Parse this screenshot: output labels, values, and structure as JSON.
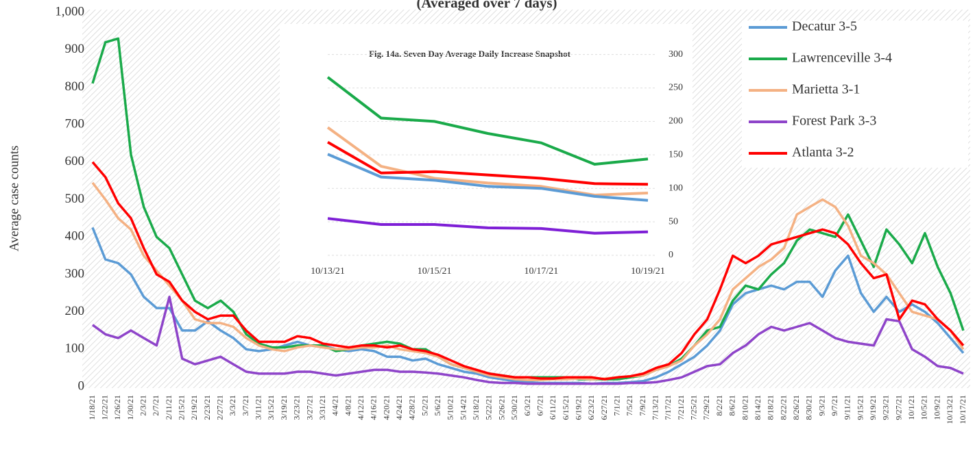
{
  "chart_data": [
    {
      "type": "line",
      "title": "(Averaged over 7 days)",
      "y_label": "Average case counts",
      "categories": [
        "1/18/21",
        "1/22/21",
        "1/26/21",
        "1/30/21",
        "2/3/21",
        "2/7/21",
        "2/11/21",
        "2/15/21",
        "2/19/21",
        "2/23/21",
        "2/27/21",
        "3/3/21",
        "3/7/21",
        "3/11/21",
        "3/15/21",
        "3/19/21",
        "3/23/21",
        "3/27/21",
        "3/31/21",
        "4/4/21",
        "4/8/21",
        "4/12/21",
        "4/16/21",
        "4/20/21",
        "4/24/21",
        "4/28/21",
        "5/2/21",
        "5/6/21",
        "5/10/21",
        "5/14/21",
        "5/18/21",
        "5/22/21",
        "5/26/21",
        "5/30/21",
        "6/3/21",
        "6/7/21",
        "6/11/21",
        "6/15/21",
        "6/19/21",
        "6/23/21",
        "6/27/21",
        "7/1/21",
        "7/5/21",
        "7/9/21",
        "7/13/21",
        "7/17/21",
        "7/21/21",
        "7/25/21",
        "7/29/21",
        "8/2/21",
        "8/6/21",
        "8/10/21",
        "8/14/21",
        "8/18/21",
        "8/22/21",
        "8/26/21",
        "8/30/21",
        "9/3/21",
        "9/7/21",
        "9/11/21",
        "9/15/21",
        "9/19/21",
        "9/23/21",
        "9/27/21",
        "10/1/21",
        "10/5/21",
        "10/9/21",
        "10/13/21",
        "10/17/21"
      ],
      "series": [
        {
          "name": "Decatur 3-5",
          "color": "#5b9bd5",
          "values": [
            425,
            340,
            330,
            300,
            240,
            210,
            210,
            150,
            150,
            175,
            150,
            130,
            100,
            95,
            100,
            110,
            120,
            110,
            110,
            100,
            95,
            100,
            95,
            80,
            80,
            70,
            75,
            60,
            50,
            40,
            35,
            25,
            20,
            15,
            12,
            10,
            10,
            10,
            10,
            8,
            10,
            10,
            12,
            15,
            25,
            40,
            60,
            80,
            110,
            150,
            220,
            250,
            260,
            270,
            260,
            280,
            280,
            240,
            310,
            350,
            250,
            200,
            240,
            200,
            220,
            200,
            170,
            130,
            90
          ]
        },
        {
          "name": "Lawrenceville 3-4",
          "color": "#1aaa4a",
          "values": [
            810,
            920,
            930,
            620,
            480,
            400,
            370,
            300,
            230,
            210,
            230,
            200,
            140,
            115,
            105,
            105,
            110,
            110,
            110,
            95,
            100,
            110,
            115,
            120,
            115,
            100,
            100,
            80,
            60,
            50,
            40,
            35,
            30,
            25,
            25,
            25,
            25,
            25,
            20,
            20,
            20,
            20,
            25,
            30,
            45,
            55,
            75,
            110,
            150,
            160,
            230,
            270,
            260,
            300,
            330,
            390,
            420,
            410,
            400,
            460,
            390,
            320,
            420,
            380,
            330,
            410,
            320,
            250,
            150
          ]
        },
        {
          "name": "Marietta 3-1",
          "color": "#f4b183",
          "values": [
            545,
            500,
            450,
            420,
            350,
            310,
            270,
            230,
            180,
            170,
            170,
            160,
            130,
            110,
            100,
            95,
            105,
            110,
            105,
            100,
            100,
            105,
            105,
            110,
            100,
            95,
            90,
            80,
            60,
            50,
            40,
            30,
            25,
            20,
            18,
            18,
            20,
            20,
            22,
            20,
            22,
            25,
            28,
            30,
            45,
            55,
            70,
            110,
            140,
            180,
            260,
            290,
            320,
            340,
            370,
            460,
            480,
            500,
            480,
            430,
            350,
            330,
            300,
            250,
            200,
            190,
            180,
            150,
            100
          ]
        },
        {
          "name": "Forest Park 3-3",
          "color": "#8e44c9",
          "values": [
            165,
            140,
            130,
            150,
            130,
            110,
            240,
            75,
            60,
            70,
            80,
            60,
            40,
            35,
            35,
            35,
            40,
            40,
            35,
            30,
            35,
            40,
            45,
            45,
            40,
            40,
            38,
            35,
            30,
            25,
            18,
            12,
            10,
            10,
            8,
            8,
            8,
            8,
            8,
            8,
            8,
            8,
            10,
            10,
            12,
            18,
            25,
            40,
            55,
            60,
            90,
            110,
            140,
            160,
            150,
            160,
            170,
            150,
            130,
            120,
            115,
            110,
            180,
            175,
            100,
            80,
            55,
            50,
            35
          ]
        },
        {
          "name": "Atlanta 3-2",
          "color": "#ff0000",
          "values": [
            600,
            560,
            490,
            450,
            370,
            300,
            280,
            230,
            200,
            180,
            190,
            190,
            150,
            120,
            120,
            120,
            135,
            130,
            115,
            110,
            105,
            110,
            110,
            105,
            110,
            100,
            95,
            85,
            70,
            55,
            45,
            35,
            30,
            25,
            25,
            22,
            22,
            25,
            25,
            25,
            20,
            25,
            28,
            35,
            50,
            60,
            90,
            140,
            180,
            260,
            350,
            330,
            350,
            380,
            390,
            400,
            410,
            420,
            410,
            380,
            330,
            290,
            300,
            180,
            230,
            220,
            180,
            150,
            110
          ]
        }
      ],
      "ylim": [
        0,
        1000
      ],
      "yticks": [
        0,
        100,
        200,
        300,
        400,
        500,
        600,
        700,
        800,
        900,
        {
          "value": 1000,
          "label": "1,000"
        }
      ],
      "grid": false,
      "legend": "top-right"
    },
    {
      "type": "line",
      "title": "Fig. 14a. Seven Day Average Daily Increase Snapshot",
      "categories": [
        "10/13/21",
        null,
        "10/15/21",
        null,
        "10/17/21",
        null,
        "10/19/21"
      ],
      "series": [
        {
          "name": "Lawrenceville 3-4",
          "color": "#1aaa4a",
          "values": [
            266,
            205,
            200,
            182,
            168,
            136,
            144
          ]
        },
        {
          "name": "Marietta 3-1",
          "color": "#f4b183",
          "values": [
            191,
            133,
            115,
            108,
            103,
            90,
            93
          ]
        },
        {
          "name": "Atlanta 3-2",
          "color": "#ff0000",
          "values": [
            169,
            123,
            125,
            120,
            115,
            107,
            106
          ]
        },
        {
          "name": "Decatur 3-5",
          "color": "#5b9bd5",
          "values": [
            151,
            117,
            112,
            103,
            100,
            88,
            82
          ]
        },
        {
          "name": "Forest Park 3-3",
          "color": "#7e1fd6",
          "values": [
            55,
            46,
            46,
            41,
            40,
            33,
            35
          ]
        }
      ],
      "ylim": [
        0,
        320
      ],
      "yticks": [
        0,
        50,
        100,
        150,
        200,
        250,
        300
      ],
      "y_axis_side": "right",
      "grid": true
    }
  ]
}
